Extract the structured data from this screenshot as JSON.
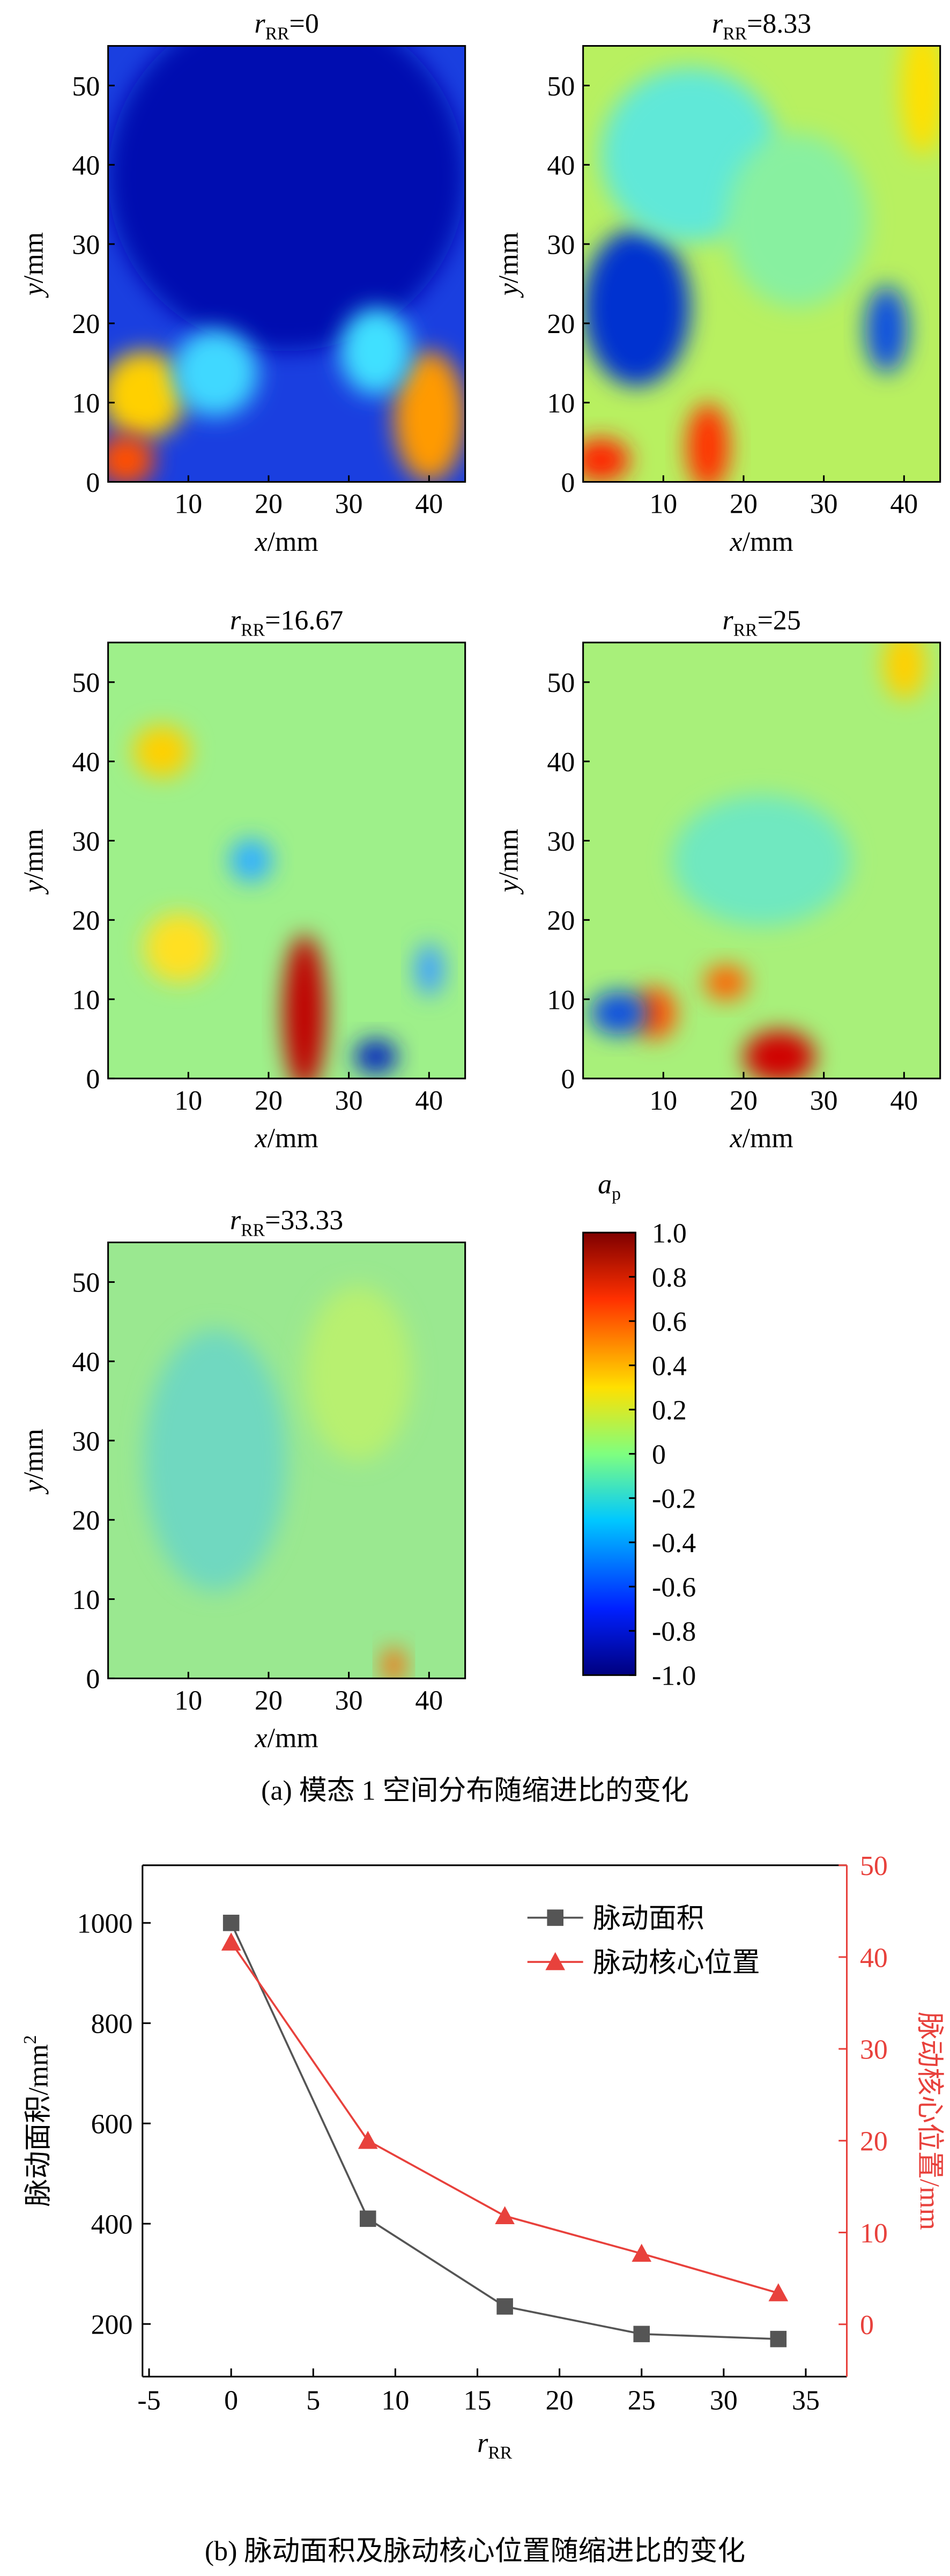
{
  "chart_data": [
    {
      "type": "heatmap",
      "title": [
        "r",
        "RR",
        "=0"
      ],
      "xlabel": [
        "x",
        "/mm"
      ],
      "ylabel": [
        "y",
        "/mm"
      ],
      "xlim": [
        0,
        44.5
      ],
      "ylim": [
        0,
        55
      ],
      "xticks": [
        10,
        20,
        30,
        40
      ],
      "yticks": [
        0,
        10,
        20,
        30,
        40,
        50
      ]
    },
    {
      "type": "heatmap",
      "title": [
        "r",
        "RR",
        "=8.33"
      ],
      "xlabel": [
        "x",
        "/mm"
      ],
      "ylabel": [
        "y",
        "/mm"
      ],
      "xlim": [
        0,
        44.5
      ],
      "ylim": [
        0,
        55
      ],
      "xticks": [
        10,
        20,
        30,
        40
      ],
      "yticks": [
        0,
        10,
        20,
        30,
        40,
        50
      ]
    },
    {
      "type": "heatmap",
      "title": [
        "r",
        "RR",
        "=16.67"
      ],
      "xlabel": [
        "x",
        "/mm"
      ],
      "ylabel": [
        "y",
        "/mm"
      ],
      "xlim": [
        0,
        44.5
      ],
      "ylim": [
        0,
        55
      ],
      "xticks": [
        10,
        20,
        30,
        40
      ],
      "yticks": [
        0,
        10,
        20,
        30,
        40,
        50
      ]
    },
    {
      "type": "heatmap",
      "title": [
        "r",
        "RR",
        "=25"
      ],
      "xlabel": [
        "x",
        "/mm"
      ],
      "ylabel": [
        "y",
        "/mm"
      ],
      "xlim": [
        0,
        44.5
      ],
      "ylim": [
        0,
        55
      ],
      "xticks": [
        10,
        20,
        30,
        40
      ],
      "yticks": [
        0,
        10,
        20,
        30,
        40,
        50
      ]
    },
    {
      "type": "heatmap",
      "title": [
        "r",
        "RR",
        "=33.33"
      ],
      "xlabel": [
        "x",
        "/mm"
      ],
      "ylabel": [
        "y",
        "/mm"
      ],
      "xlim": [
        0,
        44.5
      ],
      "ylim": [
        0,
        55
      ],
      "xticks": [
        10,
        20,
        30,
        40
      ],
      "yticks": [
        0,
        10,
        20,
        30,
        40,
        50
      ]
    },
    {
      "type": "colorbar",
      "label": [
        "a",
        "p"
      ],
      "ylim": [
        -1,
        1
      ],
      "yticks": [
        {
          "value": 1,
          "label": "1.0"
        },
        0.8,
        0.6,
        0.4,
        0.2,
        0,
        -0.2,
        -0.4,
        -0.6,
        -0.8,
        {
          "value": -1,
          "label": "-1.0"
        }
      ],
      "caption": "(a) 模态 1 空间分布随缩进比的变化"
    },
    {
      "type": "line",
      "xlabel": [
        "r",
        "RR"
      ],
      "ylabel": [
        "脉动面积/mm",
        "2"
      ],
      "y2label": "脉动核心位置/mm",
      "caption": "(b) 脉动面积及脉动核心位置随缩进比的变化",
      "x": [
        0,
        8.33,
        16.67,
        25,
        33.33
      ],
      "xlim": [
        -5.4,
        37.5
      ],
      "xticks": [
        -5,
        0,
        5,
        10,
        15,
        20,
        25,
        30,
        35
      ],
      "ylim": [
        95,
        1115
      ],
      "yticks": [
        200,
        400,
        600,
        800,
        1000
      ],
      "y2lim": [
        -5.7,
        50
      ],
      "y2ticks": [
        0,
        10,
        20,
        30,
        40,
        50
      ],
      "y2color": "#e8413c",
      "legend": "top-right",
      "series": [
        {
          "name": "脉动面积",
          "color": "#555555",
          "marker": "square",
          "values": [
            1000,
            410,
            235,
            180,
            170
          ]
        },
        {
          "name": "脉动核心位置",
          "color": "#e8413c",
          "marker": "triangle",
          "axis": "y2",
          "values": [
            41.6,
            20,
            11.8,
            7.7,
            3.4
          ]
        }
      ]
    }
  ]
}
